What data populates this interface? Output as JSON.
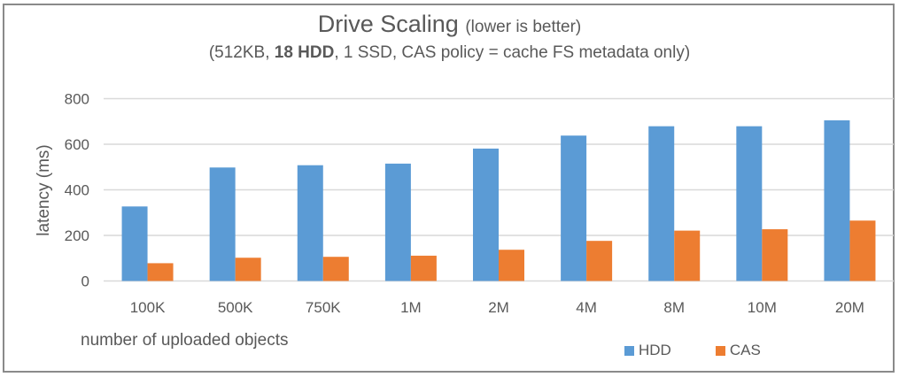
{
  "chart_data": {
    "type": "bar",
    "title": "Drive Scaling",
    "title_note": "(lower is better)",
    "subtitle_parts": [
      {
        "text": "(512KB, ",
        "bold": false
      },
      {
        "text": "18 HDD",
        "bold": true
      },
      {
        "text": ", 1 SSD, CAS policy = cache FS metadata only)",
        "bold": false
      }
    ],
    "xlabel": "number of uploaded objects",
    "ylabel": "latency (ms)",
    "ylim": [
      0,
      800
    ],
    "yticks": [
      0,
      200,
      400,
      600,
      800
    ],
    "grid": true,
    "legend_position": "bottom-right",
    "categories": [
      "100K",
      "500K",
      "750K",
      "1M",
      "2M",
      "4M",
      "8M",
      "10M",
      "20M"
    ],
    "series": [
      {
        "name": "HDD",
        "color": "#5b9bd5",
        "values": [
          327,
          498,
          508,
          515,
          581,
          638,
          679,
          679,
          705
        ]
      },
      {
        "name": "CAS",
        "color": "#ed7d31",
        "values": [
          78,
          102,
          106,
          111,
          137,
          176,
          221,
          227,
          265
        ]
      }
    ]
  }
}
